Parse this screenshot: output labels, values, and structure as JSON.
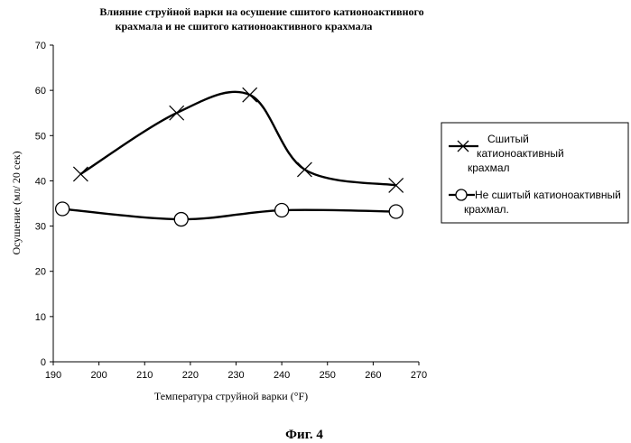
{
  "chart_data": {
    "type": "line",
    "title_lines": [
      "Влияние струйной варки на осушение сшитого катионоактивного",
      "крахмала и не сшитого катионоактивного крахмала"
    ],
    "xlabel": "Температура  струйной  варки  (°F)",
    "ylabel": "Осушение  (мл/  20  сек)",
    "xlim": [
      190,
      270
    ],
    "ylim": [
      0,
      70
    ],
    "x_ticks": [
      190,
      200,
      210,
      220,
      230,
      240,
      250,
      260,
      270
    ],
    "y_ticks": [
      0,
      10,
      20,
      30,
      40,
      50,
      60,
      70
    ],
    "grid": false,
    "legend_position": "right",
    "series": [
      {
        "name_lines": [
          "Сшитый",
          "катионоактивный",
          "крахмал"
        ],
        "marker": "x",
        "color": "#000000",
        "x": [
          196,
          217,
          233,
          245,
          265
        ],
        "y": [
          41.5,
          55,
          59,
          42.5,
          39
        ]
      },
      {
        "name_lines": [
          "Не сшитый катионоактивный",
          "крахмал."
        ],
        "marker": "circle",
        "color": "#000000",
        "x": [
          192,
          218,
          240,
          265
        ],
        "y": [
          33.8,
          31.5,
          33.5,
          33.2
        ]
      }
    ]
  },
  "caption": "Фиг. 4"
}
